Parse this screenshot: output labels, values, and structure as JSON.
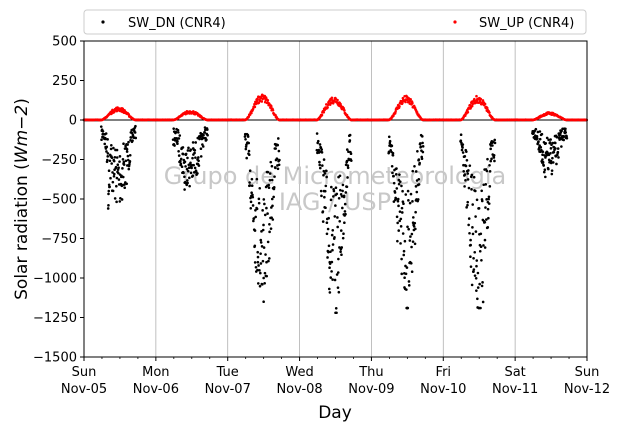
{
  "chart_data": {
    "type": "scatter",
    "xlabel": "Day",
    "ylabel": "Solar radiation (Wm−2)",
    "ylabel_parts": {
      "prefix": "Solar radiation (",
      "unit": "Wm−2",
      "suffix": ")"
    },
    "ylim": [
      -1500,
      500
    ],
    "yticks": [
      500,
      250,
      0,
      -250,
      -500,
      -750,
      -1000,
      -1250,
      -1500
    ],
    "xlim": [
      0,
      7
    ],
    "xticks": [
      {
        "day": "Sun",
        "date": "Nov-05"
      },
      {
        "day": "Mon",
        "date": "Nov-06"
      },
      {
        "day": "Tue",
        "date": "Nov-07"
      },
      {
        "day": "Wed",
        "date": "Nov-08"
      },
      {
        "day": "Thu",
        "date": "Nov-09"
      },
      {
        "day": "Fri",
        "date": "Nov-10"
      },
      {
        "day": "Sat",
        "date": "Nov-11"
      },
      {
        "day": "Sun",
        "date": "Nov-12"
      }
    ],
    "grid": "vertical",
    "legend": "top",
    "watermark": [
      "Grupo de Micrometeorologia",
      "IAG / USP"
    ],
    "series": [
      {
        "name": "SW_DN (CNR4)",
        "color": "#000000",
        "daily_profile": [
          {
            "day": 0,
            "start": 0.24,
            "end": 0.72,
            "peak": -560,
            "points": [
              [
                0.3,
                -120
              ],
              [
                0.33,
                -230
              ],
              [
                0.34,
                -540
              ],
              [
                0.35,
                -410
              ],
              [
                0.38,
                -160
              ],
              [
                0.42,
                -260
              ],
              [
                0.46,
                -190
              ],
              [
                0.5,
                -230
              ],
              [
                0.55,
                -150
              ],
              [
                0.6,
                -200
              ],
              [
                0.65,
                -110
              ]
            ]
          },
          {
            "day": 1,
            "start": 0.24,
            "end": 0.72,
            "peak": -440,
            "points": [
              [
                0.3,
                -150
              ],
              [
                0.34,
                -260
              ],
              [
                0.38,
                -330
              ],
              [
                0.4,
                -440
              ],
              [
                0.44,
                -240
              ],
              [
                0.48,
                -300
              ],
              [
                0.52,
                -180
              ],
              [
                0.58,
                -250
              ],
              [
                0.64,
                -120
              ]
            ]
          },
          {
            "day": 2,
            "start": 0.24,
            "end": 0.72,
            "peak": -1150,
            "points": [
              [
                0.3,
                -220
              ],
              [
                0.34,
                -480
              ],
              [
                0.38,
                -700
              ],
              [
                0.42,
                -900
              ],
              [
                0.46,
                -760
              ],
              [
                0.5,
                -1000
              ],
              [
                0.5,
                -1150
              ],
              [
                0.54,
                -900
              ],
              [
                0.58,
                -660
              ],
              [
                0.62,
                -500
              ],
              [
                0.66,
                -300
              ]
            ]
          },
          {
            "day": 3,
            "start": 0.24,
            "end": 0.72,
            "peak": -1220,
            "points": [
              [
                0.3,
                -200
              ],
              [
                0.34,
                -450
              ],
              [
                0.38,
                -650
              ],
              [
                0.42,
                -900
              ],
              [
                0.46,
                -1010
              ],
              [
                0.5,
                -1220
              ],
              [
                0.54,
                -880
              ],
              [
                0.58,
                -700
              ],
              [
                0.62,
                -480
              ],
              [
                0.66,
                -260
              ]
            ]
          },
          {
            "day": 4,
            "start": 0.24,
            "end": 0.72,
            "peak": -1190,
            "points": [
              [
                0.3,
                -210
              ],
              [
                0.34,
                -500
              ],
              [
                0.38,
                -700
              ],
              [
                0.42,
                -880
              ],
              [
                0.46,
                -1060
              ],
              [
                0.5,
                -1190
              ],
              [
                0.54,
                -900
              ],
              [
                0.58,
                -650
              ],
              [
                0.62,
                -420
              ],
              [
                0.66,
                -250
              ]
            ]
          },
          {
            "day": 5,
            "start": 0.24,
            "end": 0.72,
            "peak": -1190,
            "points": [
              [
                0.3,
                -230
              ],
              [
                0.34,
                -520
              ],
              [
                0.38,
                -760
              ],
              [
                0.42,
                -960
              ],
              [
                0.46,
                -1080
              ],
              [
                0.5,
                -1190
              ],
              [
                0.54,
                -1050
              ],
              [
                0.58,
                -760
              ],
              [
                0.62,
                -520
              ],
              [
                0.66,
                -260
              ]
            ]
          },
          {
            "day": 6,
            "start": 0.24,
            "end": 0.72,
            "peak": -360,
            "points": [
              [
                0.3,
                -110
              ],
              [
                0.34,
                -200
              ],
              [
                0.38,
                -250
              ],
              [
                0.42,
                -360
              ],
              [
                0.46,
                -220
              ],
              [
                0.5,
                -260
              ],
              [
                0.56,
                -180
              ],
              [
                0.62,
                -120
              ]
            ]
          }
        ]
      },
      {
        "name": "SW_UP (CNR4)",
        "color": "#ff0000",
        "daily_profile": [
          {
            "day": 0,
            "start": 0.24,
            "end": 0.72,
            "peak": 75
          },
          {
            "day": 1,
            "start": 0.24,
            "end": 0.72,
            "peak": 55
          },
          {
            "day": 2,
            "start": 0.24,
            "end": 0.72,
            "peak": 150
          },
          {
            "day": 3,
            "start": 0.24,
            "end": 0.72,
            "peak": 140
          },
          {
            "day": 4,
            "start": 0.24,
            "end": 0.72,
            "peak": 140
          },
          {
            "day": 5,
            "start": 0.24,
            "end": 0.72,
            "peak": 140
          },
          {
            "day": 6,
            "start": 0.24,
            "end": 0.72,
            "peak": 45
          }
        ]
      }
    ]
  }
}
